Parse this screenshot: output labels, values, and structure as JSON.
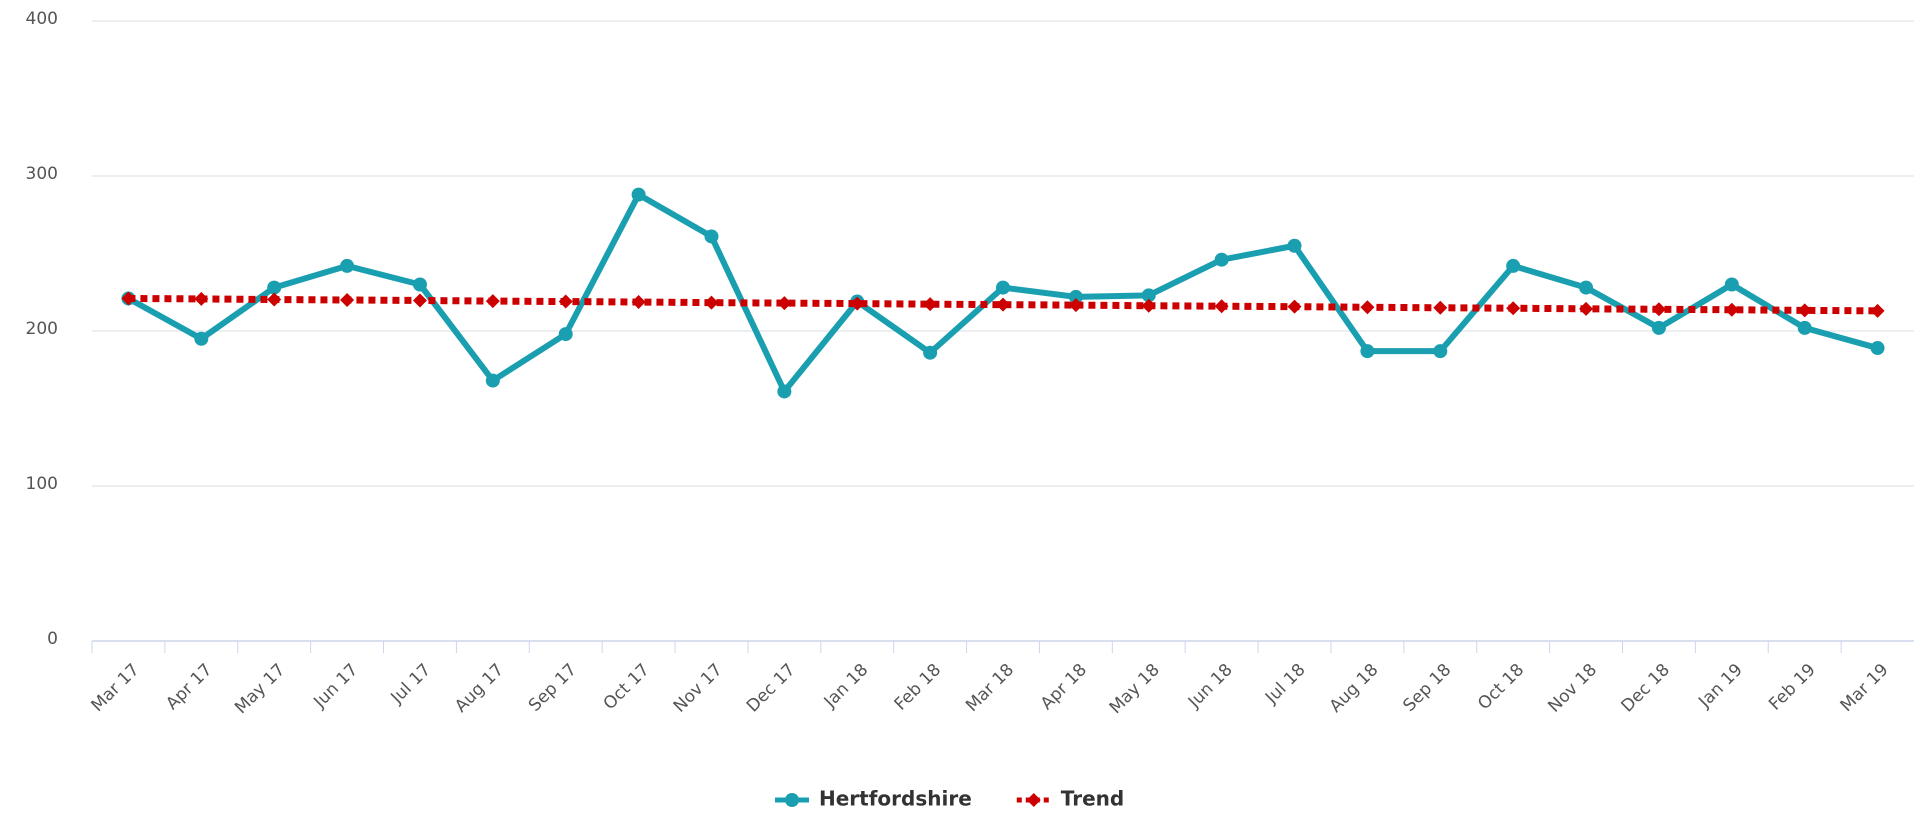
{
  "chart_data": {
    "type": "line",
    "categories": [
      "Mar 17",
      "Apr 17",
      "May 17",
      "Jun 17",
      "Jul 17",
      "Aug 17",
      "Sep 17",
      "Oct 17",
      "Nov 17",
      "Dec 17",
      "Jan 18",
      "Feb 18",
      "Mar 18",
      "Apr 18",
      "May 18",
      "Jun 18",
      "Jul 18",
      "Aug 18",
      "Sep 18",
      "Oct 18",
      "Nov 18",
      "Dec 18",
      "Jan 19",
      "Feb 19",
      "Mar 19"
    ],
    "series": [
      {
        "name": "Hertfordshire",
        "color": "#1a9fb0",
        "values": [
          221,
          195,
          228,
          242,
          230,
          168,
          198,
          288,
          261,
          161,
          219,
          186,
          228,
          222,
          223,
          246,
          255,
          187,
          187,
          242,
          228,
          202,
          230,
          202,
          189
        ]
      },
      {
        "name": "Trend",
        "color": "#cc0000",
        "values": [
          221,
          220.7,
          220.3,
          220,
          219.7,
          219.3,
          219,
          218.7,
          218.3,
          218,
          217.7,
          217.3,
          217,
          216.7,
          216.3,
          216,
          215.7,
          215.3,
          215,
          214.7,
          214.3,
          214,
          213.7,
          213.3,
          213
        ]
      }
    ],
    "ylim": [
      0,
      400
    ],
    "yticks": [
      0,
      100,
      200,
      300,
      400
    ],
    "grid": true
  }
}
